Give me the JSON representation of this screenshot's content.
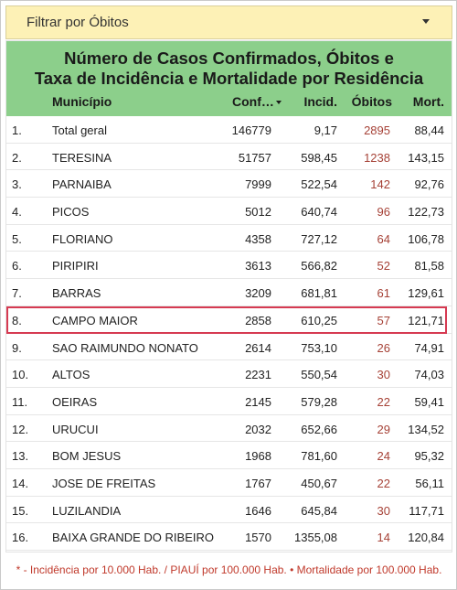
{
  "filter": {
    "label": "Filtrar por Óbitos"
  },
  "table": {
    "title_line1": "Número de Casos Confirmados, Óbitos e",
    "title_line2": "Taxa de Incidência e Mortalidade por Residência",
    "headers": {
      "municipio": "Município",
      "confirmados": "Conf…",
      "incidencia": "Incid.",
      "obitos": "Óbitos",
      "mortalidade": "Mort."
    },
    "rows": [
      {
        "idx": "1.",
        "municipio": "Total geral",
        "conf": "146779",
        "inc": "9,17",
        "obitos": "2895",
        "mort": "88,44"
      },
      {
        "idx": "2.",
        "municipio": "TERESINA",
        "conf": "51757",
        "inc": "598,45",
        "obitos": "1238",
        "mort": "143,15"
      },
      {
        "idx": "3.",
        "municipio": "PARNAIBA",
        "conf": "7999",
        "inc": "522,54",
        "obitos": "142",
        "mort": "92,76"
      },
      {
        "idx": "4.",
        "municipio": "PICOS",
        "conf": "5012",
        "inc": "640,74",
        "obitos": "96",
        "mort": "122,73"
      },
      {
        "idx": "5.",
        "municipio": "FLORIANO",
        "conf": "4358",
        "inc": "727,12",
        "obitos": "64",
        "mort": "106,78"
      },
      {
        "idx": "6.",
        "municipio": "PIRIPIRI",
        "conf": "3613",
        "inc": "566,82",
        "obitos": "52",
        "mort": "81,58"
      },
      {
        "idx": "7.",
        "municipio": "BARRAS",
        "conf": "3209",
        "inc": "681,81",
        "obitos": "61",
        "mort": "129,61"
      },
      {
        "idx": "8.",
        "municipio": "CAMPO MAIOR",
        "conf": "2858",
        "inc": "610,25",
        "obitos": "57",
        "mort": "121,71"
      },
      {
        "idx": "9.",
        "municipio": "SAO RAIMUNDO NONATO",
        "conf": "2614",
        "inc": "753,10",
        "obitos": "26",
        "mort": "74,91"
      },
      {
        "idx": "10.",
        "municipio": "ALTOS",
        "conf": "2231",
        "inc": "550,54",
        "obitos": "30",
        "mort": "74,03"
      },
      {
        "idx": "11.",
        "municipio": "OEIRAS",
        "conf": "2145",
        "inc": "579,28",
        "obitos": "22",
        "mort": "59,41"
      },
      {
        "idx": "12.",
        "municipio": "URUCUI",
        "conf": "2032",
        "inc": "652,66",
        "obitos": "29",
        "mort": "134,52"
      },
      {
        "idx": "13.",
        "municipio": "BOM JESUS",
        "conf": "1968",
        "inc": "781,60",
        "obitos": "24",
        "mort": "95,32"
      },
      {
        "idx": "14.",
        "municipio": "JOSE DE FREITAS",
        "conf": "1767",
        "inc": "450,67",
        "obitos": "22",
        "mort": "56,11"
      },
      {
        "idx": "15.",
        "municipio": "LUZILANDIA",
        "conf": "1646",
        "inc": "645,84",
        "obitos": "30",
        "mort": "117,71"
      },
      {
        "idx": "16.",
        "municipio": "BAIXA GRANDE DO RIBEIRO",
        "conf": "1570",
        "inc": "1355,08",
        "obitos": "14",
        "mort": "120,84"
      }
    ],
    "highlighted_row": "CAMPO MAIOR"
  },
  "footnote": "* - Incidência por 10.000 Hab. / PIAUÍ por 100.000 Hab. • Mortalidade por 100.000 Hab.",
  "colors": {
    "header_bg": "#8ccf8b",
    "filter_bg": "#fdf1b6",
    "obitos_text": "#a64237",
    "highlight_border": "#d63a52",
    "footnote_text": "#c0392b"
  },
  "icons": {
    "filter_dropdown": "caret-down-icon",
    "sort": "sort-desc-icon"
  }
}
